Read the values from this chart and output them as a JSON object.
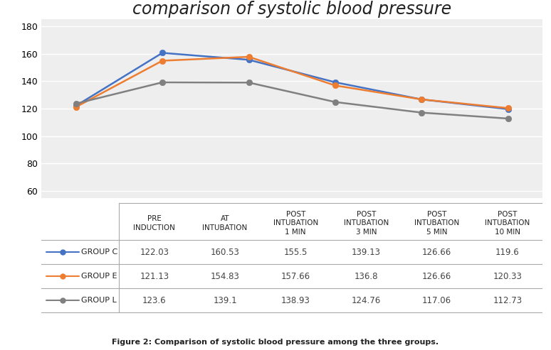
{
  "title": "comparison of systolic blood pressure",
  "title_fontsize": 17,
  "title_fontstyle": "italic",
  "x_labels": [
    "PRE\nINDUCTION",
    "AT\nINTUBATION",
    "POST\nINTUBATION\n1 MIN",
    "POST\nINTUBATION\n3 MIN",
    "POST\nINTUBATION\n5 MIN",
    "POST\nINTUBATION\n10 MIN"
  ],
  "ylim": [
    55,
    185
  ],
  "yticks": [
    60,
    80,
    100,
    120,
    140,
    160,
    180
  ],
  "groups": [
    {
      "name": "GROUP C",
      "values": [
        122.03,
        160.53,
        155.5,
        139.13,
        126.66,
        119.6
      ],
      "color": "#4472c4",
      "marker": "o"
    },
    {
      "name": "GROUP E",
      "values": [
        121.13,
        154.83,
        157.66,
        136.8,
        126.66,
        120.33
      ],
      "color": "#ed7d31",
      "marker": "o"
    },
    {
      "name": "GROUP L",
      "values": [
        123.6,
        139.1,
        138.93,
        124.76,
        117.06,
        112.73
      ],
      "color": "#808080",
      "marker": "o"
    }
  ],
  "table_data": [
    [
      "122.03",
      "160.53",
      "155.5",
      "139.13",
      "126.66",
      "119.6"
    ],
    [
      "121.13",
      "154.83",
      "157.66",
      "136.8",
      "126.66",
      "120.33"
    ],
    [
      "123.6",
      "139.1",
      "138.93",
      "124.76",
      "117.06",
      "112.73"
    ]
  ],
  "figure_caption": "Figure 2: Comparison of systolic blood pressure among the three groups.",
  "background_color": "#ffffff",
  "plot_bg_color": "#eeeeee",
  "grid_color": "#ffffff",
  "table_line_color": "#aaaaaa",
  "label_fontsize": 7.5,
  "value_fontsize": 8.5
}
